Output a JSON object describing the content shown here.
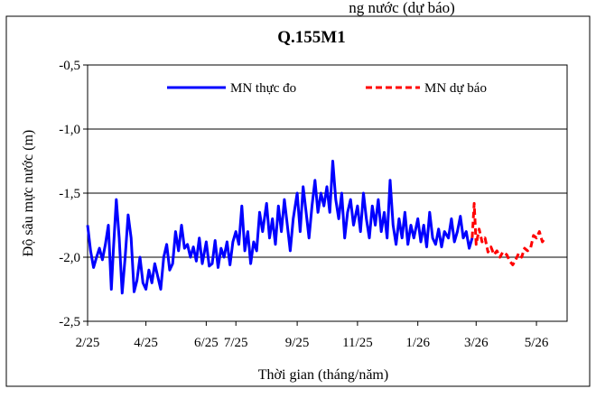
{
  "page_header_partial": "ng nước (dự báo)",
  "chart_data": {
    "type": "line",
    "title": "Q.155M1",
    "xlabel": "Thời gian (tháng/năm)",
    "ylabel": "Độ sâu mực nước (m)",
    "ylim": [
      -2.5,
      -0.5
    ],
    "yticks": [
      -0.5,
      -1.0,
      -1.5,
      -2.0,
      -2.5
    ],
    "ytick_labels": [
      "-0,5",
      "-1,0",
      "-1,5",
      "-2,0",
      "-2,5"
    ],
    "xlim": [
      "2025-02-01",
      "2026-06-01"
    ],
    "xticks": [
      "2025-02-01",
      "2025-04-01",
      "2025-06-01",
      "2025-07-01",
      "2025-09-01",
      "2025-11-01",
      "2026-01-01",
      "2026-03-01",
      "2026-05-01"
    ],
    "xtick_labels": [
      "2/25",
      "4/25",
      "6/25",
      "7/25",
      "9/25",
      "11/25",
      "1/26",
      "3/26",
      "5/26"
    ],
    "grid": "horizontal",
    "legend_position": "top",
    "series": [
      {
        "name": "MN thực đo",
        "color": "#0000ff",
        "style": "solid",
        "points": [
          [
            "2025-02-01",
            -1.75
          ],
          [
            "2025-02-04",
            -1.95
          ],
          [
            "2025-02-07",
            -2.08
          ],
          [
            "2025-02-10",
            -2.0
          ],
          [
            "2025-02-13",
            -1.93
          ],
          [
            "2025-02-16",
            -2.02
          ],
          [
            "2025-02-19",
            -1.9
          ],
          [
            "2025-02-22",
            -1.75
          ],
          [
            "2025-02-25",
            -2.25
          ],
          [
            "2025-02-27",
            -1.95
          ],
          [
            "2025-03-02",
            -1.55
          ],
          [
            "2025-03-05",
            -1.85
          ],
          [
            "2025-03-08",
            -2.28
          ],
          [
            "2025-03-11",
            -2.0
          ],
          [
            "2025-03-14",
            -1.67
          ],
          [
            "2025-03-17",
            -1.85
          ],
          [
            "2025-03-20",
            -2.27
          ],
          [
            "2025-03-23",
            -2.18
          ],
          [
            "2025-03-26",
            -2.0
          ],
          [
            "2025-03-29",
            -2.2
          ],
          [
            "2025-04-01",
            -2.25
          ],
          [
            "2025-04-04",
            -2.1
          ],
          [
            "2025-04-07",
            -2.2
          ],
          [
            "2025-04-10",
            -2.05
          ],
          [
            "2025-04-13",
            -2.15
          ],
          [
            "2025-04-16",
            -2.25
          ],
          [
            "2025-04-19",
            -2.0
          ],
          [
            "2025-04-22",
            -1.9
          ],
          [
            "2025-04-25",
            -2.1
          ],
          [
            "2025-04-28",
            -2.05
          ],
          [
            "2025-05-01",
            -1.8
          ],
          [
            "2025-05-04",
            -1.95
          ],
          [
            "2025-05-07",
            -1.75
          ],
          [
            "2025-05-10",
            -1.93
          ],
          [
            "2025-05-13",
            -1.9
          ],
          [
            "2025-05-16",
            -2.0
          ],
          [
            "2025-05-19",
            -1.92
          ],
          [
            "2025-05-22",
            -2.03
          ],
          [
            "2025-05-25",
            -1.85
          ],
          [
            "2025-05-28",
            -2.05
          ],
          [
            "2025-06-01",
            -1.88
          ],
          [
            "2025-06-04",
            -2.07
          ],
          [
            "2025-06-07",
            -2.05
          ],
          [
            "2025-06-10",
            -1.87
          ],
          [
            "2025-06-13",
            -2.08
          ],
          [
            "2025-06-16",
            -1.93
          ],
          [
            "2025-06-19",
            -2.0
          ],
          [
            "2025-06-22",
            -1.88
          ],
          [
            "2025-06-25",
            -2.06
          ],
          [
            "2025-06-28",
            -1.88
          ],
          [
            "2025-07-01",
            -1.8
          ],
          [
            "2025-07-04",
            -1.9
          ],
          [
            "2025-07-07",
            -1.6
          ],
          [
            "2025-07-10",
            -1.95
          ],
          [
            "2025-07-13",
            -1.8
          ],
          [
            "2025-07-16",
            -2.05
          ],
          [
            "2025-07-19",
            -1.88
          ],
          [
            "2025-07-22",
            -1.95
          ],
          [
            "2025-07-25",
            -1.65
          ],
          [
            "2025-07-28",
            -1.8
          ],
          [
            "2025-08-01",
            -1.58
          ],
          [
            "2025-08-04",
            -1.85
          ],
          [
            "2025-08-07",
            -1.7
          ],
          [
            "2025-08-10",
            -1.9
          ],
          [
            "2025-08-13",
            -1.6
          ],
          [
            "2025-08-16",
            -1.8
          ],
          [
            "2025-08-19",
            -1.55
          ],
          [
            "2025-08-22",
            -1.75
          ],
          [
            "2025-08-25",
            -1.95
          ],
          [
            "2025-08-28",
            -1.7
          ],
          [
            "2025-09-01",
            -1.5
          ],
          [
            "2025-09-04",
            -1.8
          ],
          [
            "2025-09-07",
            -1.45
          ],
          [
            "2025-09-10",
            -1.65
          ],
          [
            "2025-09-13",
            -1.85
          ],
          [
            "2025-09-16",
            -1.6
          ],
          [
            "2025-09-19",
            -1.4
          ],
          [
            "2025-09-22",
            -1.65
          ],
          [
            "2025-09-25",
            -1.5
          ],
          [
            "2025-09-28",
            -1.6
          ],
          [
            "2025-10-01",
            -1.45
          ],
          [
            "2025-10-04",
            -1.65
          ],
          [
            "2025-10-07",
            -1.25
          ],
          [
            "2025-10-10",
            -1.55
          ],
          [
            "2025-10-13",
            -1.7
          ],
          [
            "2025-10-16",
            -1.5
          ],
          [
            "2025-10-19",
            -1.85
          ],
          [
            "2025-10-22",
            -1.65
          ],
          [
            "2025-10-25",
            -1.55
          ],
          [
            "2025-10-28",
            -1.75
          ],
          [
            "2025-11-01",
            -1.6
          ],
          [
            "2025-11-04",
            -1.8
          ],
          [
            "2025-11-07",
            -1.5
          ],
          [
            "2025-11-10",
            -1.7
          ],
          [
            "2025-11-13",
            -1.85
          ],
          [
            "2025-11-16",
            -1.6
          ],
          [
            "2025-11-19",
            -1.75
          ],
          [
            "2025-11-22",
            -1.55
          ],
          [
            "2025-11-25",
            -1.8
          ],
          [
            "2025-11-28",
            -1.65
          ],
          [
            "2025-12-01",
            -1.85
          ],
          [
            "2025-12-04",
            -1.4
          ],
          [
            "2025-12-07",
            -1.75
          ],
          [
            "2025-12-10",
            -1.9
          ],
          [
            "2025-12-13",
            -1.7
          ],
          [
            "2025-12-16",
            -1.85
          ],
          [
            "2025-12-19",
            -1.65
          ],
          [
            "2025-12-22",
            -1.9
          ],
          [
            "2025-12-25",
            -1.75
          ],
          [
            "2025-12-28",
            -1.85
          ],
          [
            "2026-01-01",
            -1.7
          ],
          [
            "2026-01-04",
            -1.88
          ],
          [
            "2026-01-07",
            -1.75
          ],
          [
            "2026-01-10",
            -1.92
          ],
          [
            "2026-01-13",
            -1.65
          ],
          [
            "2026-01-16",
            -1.85
          ],
          [
            "2026-01-19",
            -1.9
          ],
          [
            "2026-01-22",
            -1.78
          ],
          [
            "2026-01-25",
            -1.92
          ],
          [
            "2026-01-28",
            -1.8
          ],
          [
            "2026-02-01",
            -1.85
          ],
          [
            "2026-02-04",
            -1.7
          ],
          [
            "2026-02-07",
            -1.88
          ],
          [
            "2026-02-10",
            -1.8
          ],
          [
            "2026-02-13",
            -1.68
          ],
          [
            "2026-02-16",
            -1.85
          ],
          [
            "2026-02-19",
            -1.8
          ],
          [
            "2026-02-22",
            -1.93
          ],
          [
            "2026-02-25",
            -1.85
          ]
        ]
      },
      {
        "name": "MN dự báo",
        "color": "#ff0000",
        "style": "dashed",
        "points": [
          [
            "2026-02-25",
            -1.85
          ],
          [
            "2026-02-27",
            -1.58
          ],
          [
            "2026-03-01",
            -1.9
          ],
          [
            "2026-03-04",
            -1.78
          ],
          [
            "2026-03-07",
            -1.88
          ],
          [
            "2026-03-10",
            -1.85
          ],
          [
            "2026-03-13",
            -1.96
          ],
          [
            "2026-03-16",
            -1.92
          ],
          [
            "2026-03-19",
            -1.98
          ],
          [
            "2026-03-22",
            -1.95
          ],
          [
            "2026-03-25",
            -2.0
          ],
          [
            "2026-03-28",
            -1.96
          ],
          [
            "2026-04-01",
            -1.98
          ],
          [
            "2026-04-04",
            -2.03
          ],
          [
            "2026-04-07",
            -2.06
          ],
          [
            "2026-04-10",
            -2.02
          ],
          [
            "2026-04-13",
            -1.97
          ],
          [
            "2026-04-16",
            -2.0
          ],
          [
            "2026-04-19",
            -1.93
          ],
          [
            "2026-04-22",
            -1.95
          ],
          [
            "2026-04-25",
            -1.93
          ],
          [
            "2026-04-28",
            -1.83
          ],
          [
            "2026-05-01",
            -1.85
          ],
          [
            "2026-05-04",
            -1.8
          ],
          [
            "2026-05-07",
            -1.88
          ],
          [
            "2026-05-10",
            -1.85
          ]
        ]
      }
    ]
  }
}
